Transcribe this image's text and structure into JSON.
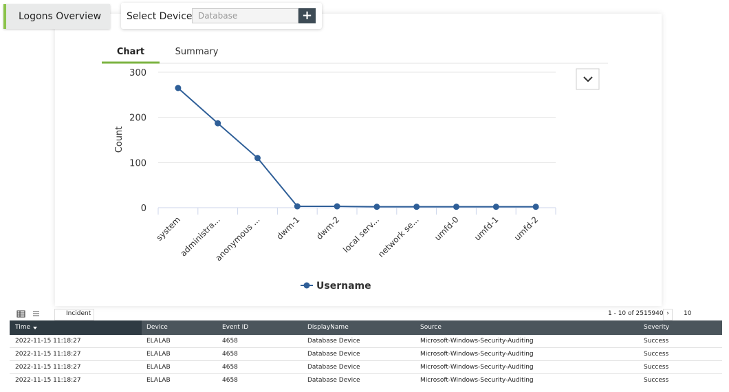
{
  "header": {
    "title": "Logons Overview",
    "select_label": "Select Device",
    "select_placeholder": "Database"
  },
  "tabs": [
    "Chart",
    "Summary"
  ],
  "chart_data": {
    "type": "line",
    "y_label": "Count",
    "categories": [
      "system",
      "administra...",
      "anonymous ...",
      "dwm-1",
      "dwm-2",
      "local serv...",
      "network se...",
      "umfd-0",
      "umfd-1",
      "umfd-2"
    ],
    "series": [
      {
        "name": "Username",
        "color": "#2f5f98",
        "values": [
          265,
          187,
          110,
          3,
          3,
          2,
          2,
          2,
          2,
          2
        ]
      }
    ],
    "ylim": [
      0,
      300
    ],
    "yticks": [
      0,
      100,
      200,
      300
    ],
    "grid": true
  },
  "table": {
    "toolbar": {
      "incident": "Incident",
      "pagination": "1 - 10 of 2515940",
      "page_size": "10"
    },
    "columns": [
      "Time",
      "Device",
      "Event ID",
      "DisplayName",
      "Source",
      "Severity"
    ],
    "rows": [
      [
        "2022-11-15 11:18:27",
        "ELALAB",
        "4658",
        "Database Device",
        "Microsoft-Windows-Security-Auditing",
        "Success"
      ],
      [
        "2022-11-15 11:18:27",
        "ELALAB",
        "4658",
        "Database Device",
        "Microsoft-Windows-Security-Auditing",
        "Success"
      ],
      [
        "2022-11-15 11:18:27",
        "ELALAB",
        "4658",
        "Database Device",
        "Microsoft-Windows-Security-Auditing",
        "Success"
      ],
      [
        "2022-11-15 11:18:27",
        "ELALAB",
        "4658",
        "Database Device",
        "Microsoft-Windows-Security-Auditing",
        "Success"
      ]
    ]
  }
}
